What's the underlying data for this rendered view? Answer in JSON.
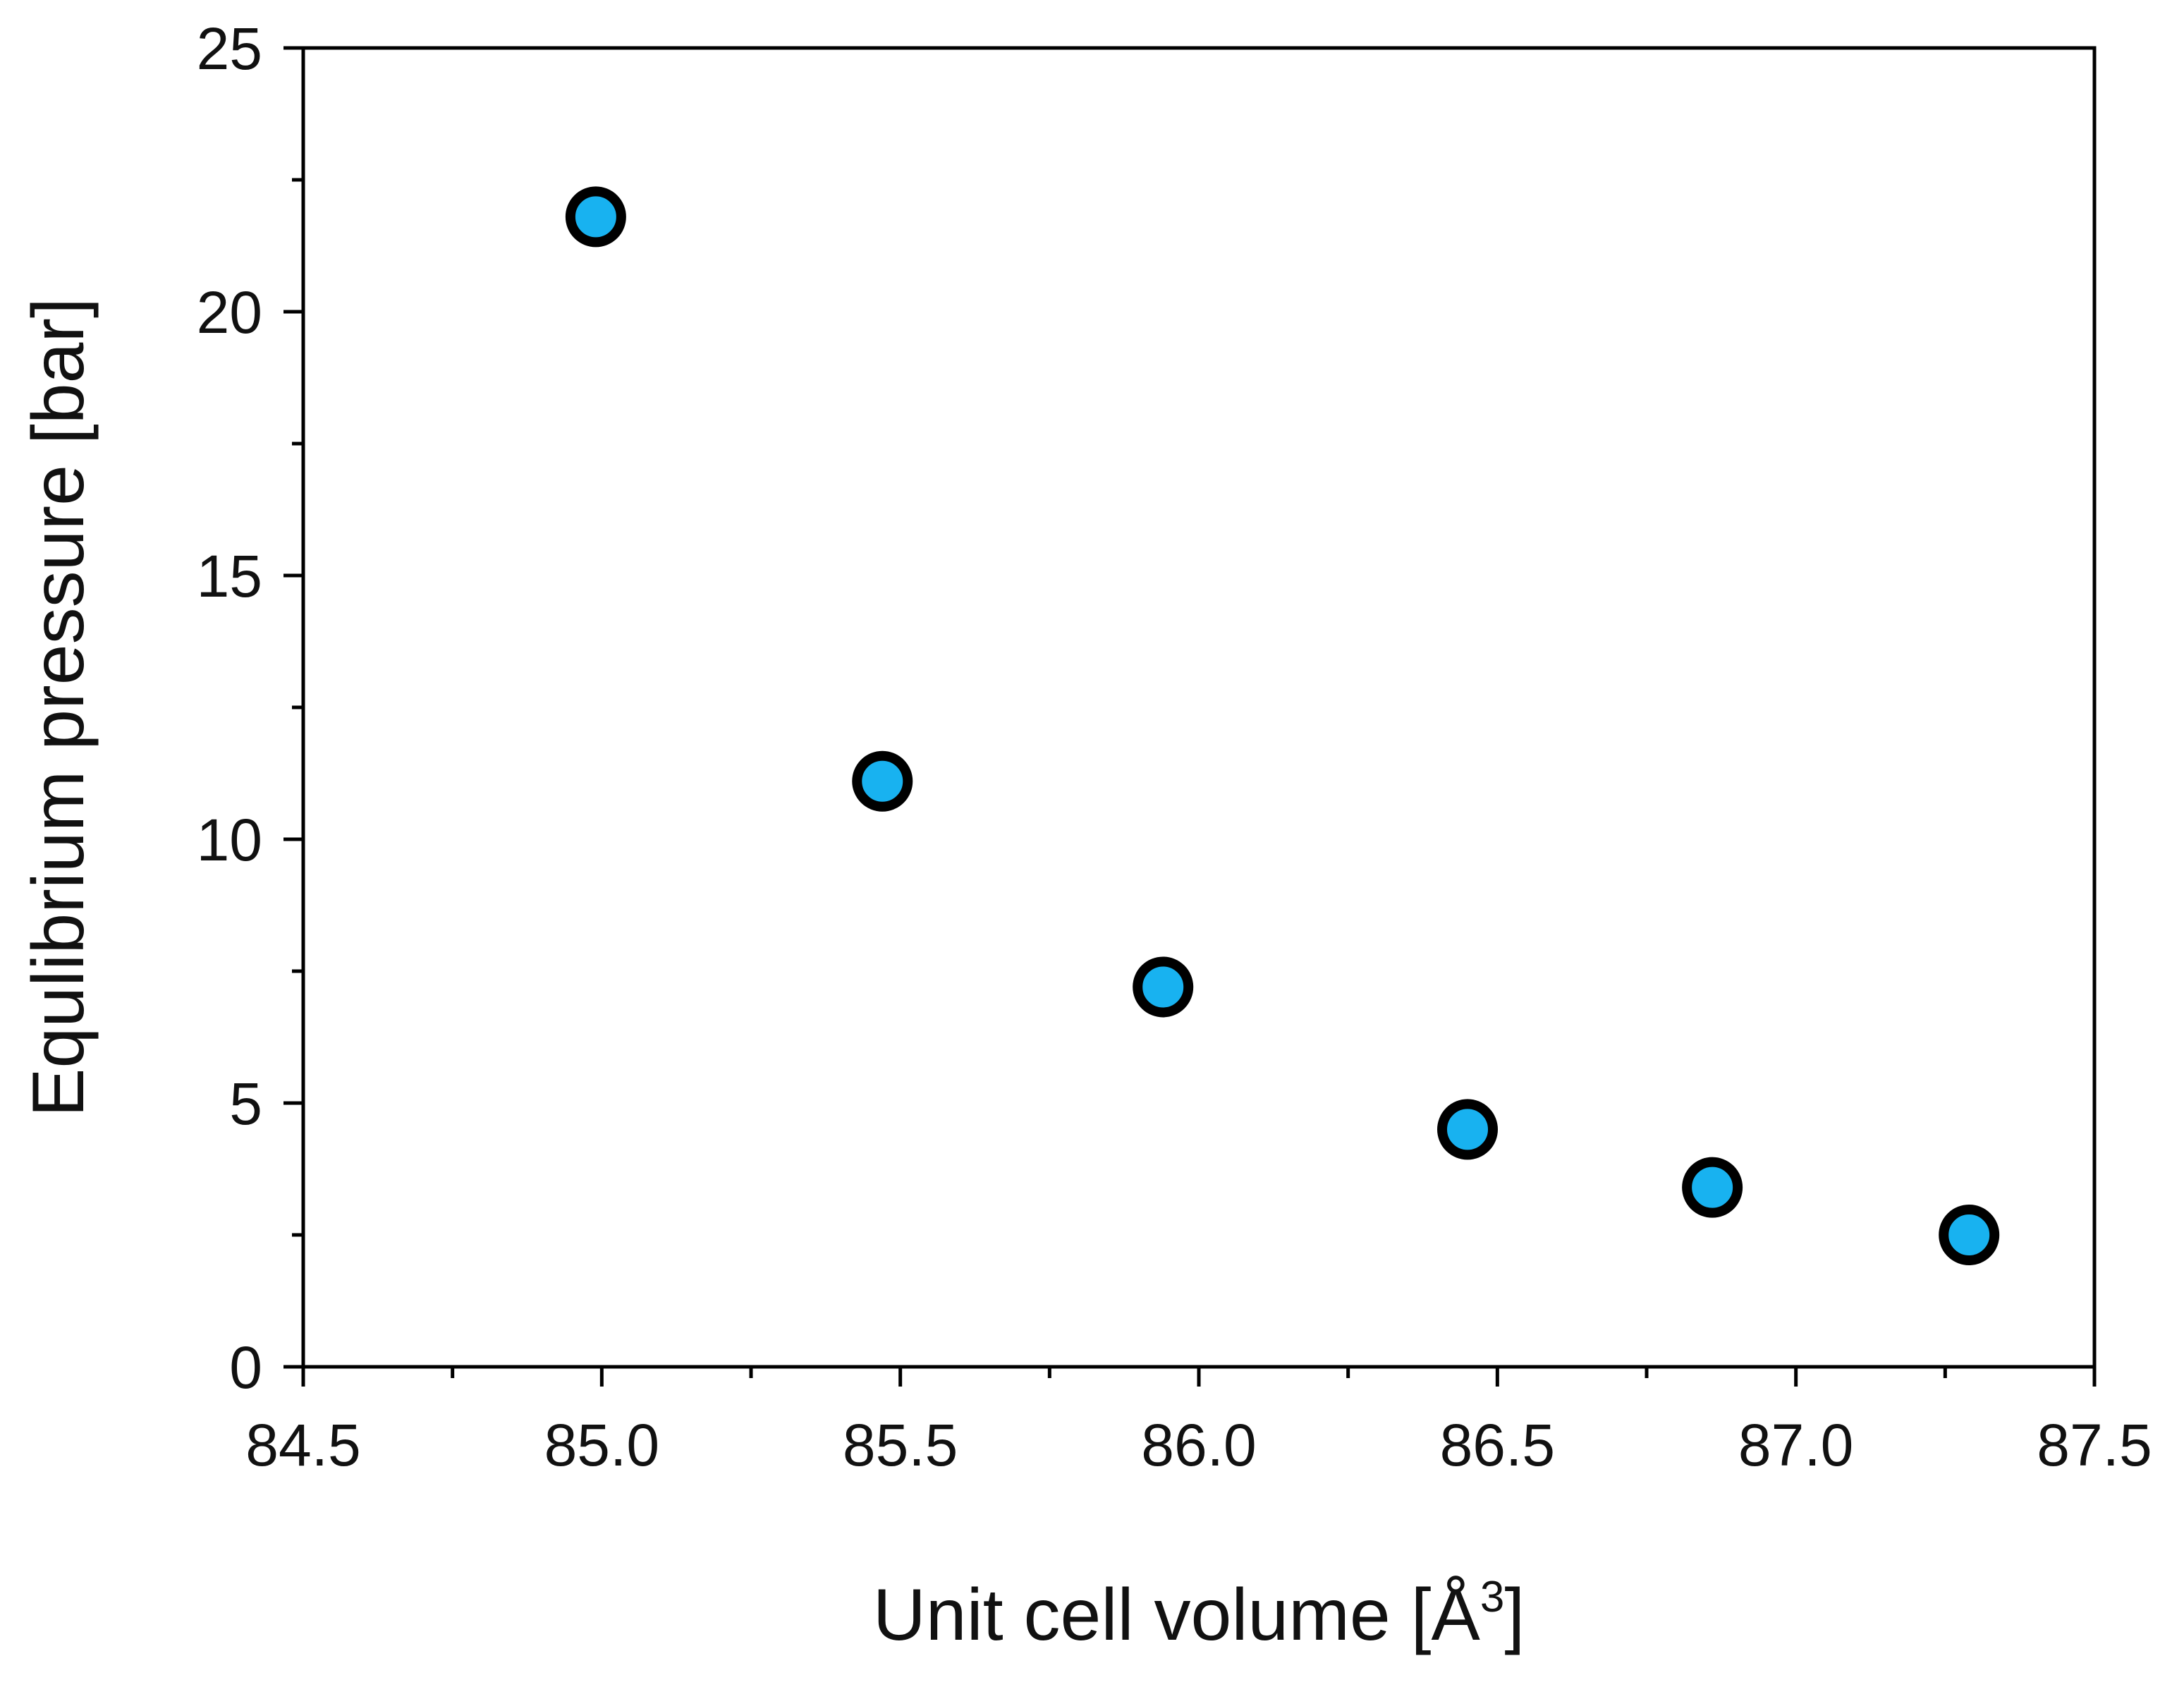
{
  "chart_data": {
    "type": "scatter",
    "title": "",
    "xlabel": "Unit cell volume [Å3]",
    "xlabel_main": "Unit cell volume [Å",
    "xlabel_sup": "3",
    "xlabel_end": "]",
    "ylabel": "Equlibrium pressure [bar]",
    "xlim": [
      84.5,
      87.5
    ],
    "ylim": [
      0,
      25
    ],
    "x_ticks": [
      "84.5",
      "85.0",
      "85.5",
      "86.0",
      "86.5",
      "87.0",
      "87.5"
    ],
    "y_ticks": [
      "0",
      "5",
      "10",
      "15",
      "20",
      "25"
    ],
    "grid": false,
    "series": [
      {
        "name": "Equilibrium pressure",
        "x": [
          84.99,
          85.47,
          85.94,
          86.45,
          86.86,
          87.29
        ],
        "y": [
          21.8,
          11.1,
          7.2,
          4.5,
          3.4,
          2.5
        ],
        "marker_color": "#18b2f0",
        "edge_color": "#000000"
      }
    ]
  }
}
